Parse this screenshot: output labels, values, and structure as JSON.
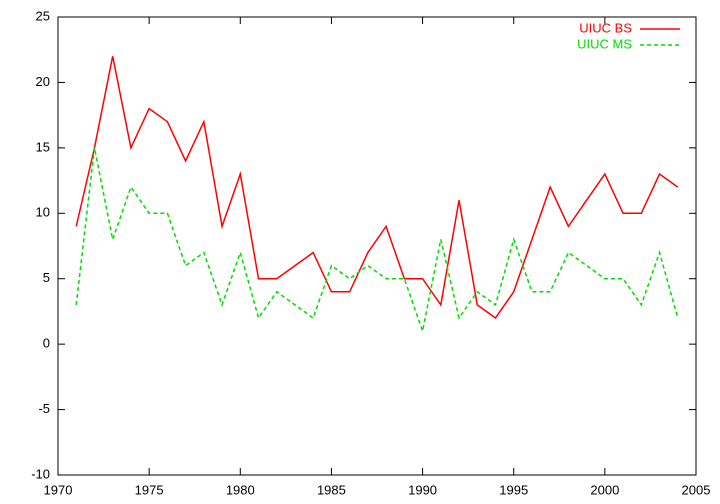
{
  "chart_data": {
    "type": "line",
    "x": [
      1971,
      1972,
      1973,
      1974,
      1975,
      1976,
      1977,
      1978,
      1979,
      1980,
      1981,
      1982,
      1983,
      1984,
      1985,
      1986,
      1987,
      1988,
      1989,
      1990,
      1991,
      1992,
      1993,
      1994,
      1995,
      1996,
      1997,
      1998,
      1999,
      2000,
      2001,
      2002,
      2003,
      2004
    ],
    "series": [
      {
        "name": "UIUC BS",
        "color": "#ff0000",
        "dash": false,
        "values": [
          9,
          15,
          22,
          15,
          18,
          17,
          14,
          17,
          9,
          13,
          5,
          5,
          6,
          7,
          4,
          4,
          7,
          9,
          5,
          5,
          3,
          11,
          3,
          2,
          4,
          8,
          12,
          9,
          11,
          13,
          10,
          10,
          13,
          12
        ]
      },
      {
        "name": "UIUC MS",
        "color": "#00dd00",
        "dash": true,
        "values": [
          3,
          15,
          8,
          12,
          10,
          10,
          6,
          7,
          3,
          7,
          2,
          4,
          3,
          2,
          6,
          5,
          6,
          5,
          5,
          1,
          8,
          2,
          4,
          3,
          8,
          4,
          4,
          7,
          6,
          5,
          5,
          3,
          7,
          2
        ]
      }
    ],
    "xlim": [
      1970,
      2005
    ],
    "xticks": [
      1970,
      1975,
      1980,
      1985,
      1990,
      1995,
      2000,
      2005
    ],
    "ylim": [
      -10,
      25
    ],
    "yticks": [
      -10,
      -5,
      0,
      5,
      10,
      15,
      20,
      25
    ],
    "legend": "top-right"
  }
}
